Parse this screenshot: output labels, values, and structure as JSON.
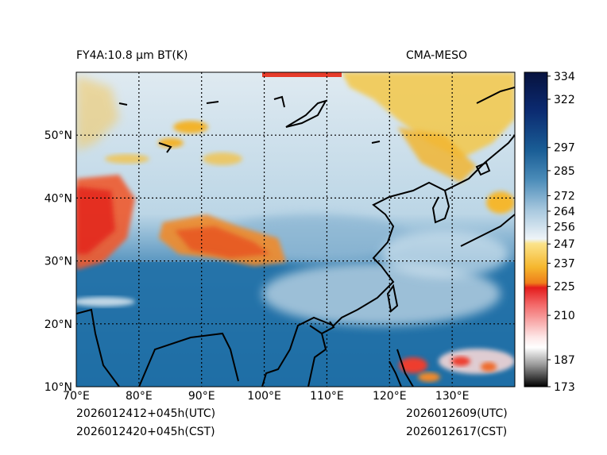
{
  "header": {
    "title_left": "FY4A:10.8 µm BT(K)",
    "title_right": "CMA-MESO"
  },
  "footer": {
    "time_left_utc": "2026012412+045h(UTC)",
    "time_left_cst": "2026012420+045h(CST)",
    "time_right_utc": "2026012609(UTC)",
    "time_right_cst": "2026012617(CST)"
  },
  "map": {
    "lon_range": [
      70,
      140
    ],
    "lat_range": [
      10,
      60
    ],
    "lon_labels": [
      "70°E",
      "80°E",
      "90°E",
      "100°E",
      "110°E",
      "120°E",
      "130°E"
    ],
    "lon_values": [
      70,
      80,
      90,
      100,
      110,
      120,
      130
    ],
    "lat_labels": [
      "10°N",
      "20°N",
      "30°N",
      "40°N",
      "50°N"
    ],
    "lat_values": [
      10,
      20,
      30,
      40,
      50
    ]
  },
  "colorbar": {
    "range": [
      173,
      336
    ],
    "ticks": [
      "334",
      "322",
      "297",
      "285",
      "272",
      "264",
      "256",
      "247",
      "237",
      "225",
      "210",
      "187",
      "173"
    ],
    "tick_values": [
      334,
      322,
      297,
      285,
      272,
      264,
      256,
      247,
      237,
      225,
      210,
      187,
      173
    ]
  }
}
